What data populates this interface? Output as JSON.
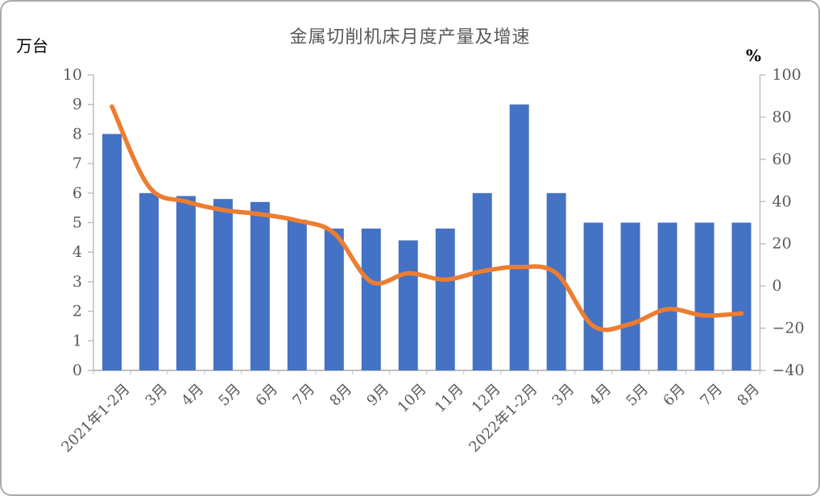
{
  "chart": {
    "title": "金属切削机床月度产量及增速",
    "left_unit": "万台",
    "right_unit": "%"
  },
  "chart_data": {
    "type": "bar",
    "title": "金属切削机床月度产量及增速",
    "left_axis_label": "万台",
    "right_axis_label": "%",
    "categories": [
      "2021年1-2月",
      "3月",
      "4月",
      "5月",
      "6月",
      "7月",
      "8月",
      "9月",
      "10月",
      "11月",
      "12月",
      "2022年1-2月",
      "3月",
      "4月",
      "5月",
      "6月",
      "7月",
      "8月"
    ],
    "series": [
      {
        "name": "月度产量",
        "type": "bar",
        "axis": "left",
        "color": "#4472C4",
        "values": [
          8.0,
          6.0,
          5.9,
          5.8,
          5.7,
          5.1,
          4.8,
          4.8,
          4.4,
          4.8,
          6.0,
          9.0,
          6.0,
          5.0,
          5.0,
          5.0,
          5.0,
          5.0
        ]
      },
      {
        "name": "增速",
        "type": "line",
        "axis": "right",
        "color": "#ED7D31",
        "values": [
          85,
          47,
          40,
          36,
          34,
          31,
          25,
          2,
          6,
          3,
          7,
          9,
          6,
          -19,
          -18,
          -11,
          -14,
          -13
        ]
      }
    ],
    "left_axis": {
      "min": 0,
      "max": 10,
      "ticks": [
        0,
        1,
        2,
        3,
        4,
        5,
        6,
        7,
        8,
        9,
        10
      ]
    },
    "right_axis": {
      "min": -40,
      "max": 100,
      "ticks": [
        -40,
        -20,
        0,
        20,
        40,
        60,
        80,
        100
      ]
    },
    "grid": false,
    "legend": "none",
    "axis_color": "#c0c0c0",
    "label_color": "#595959"
  }
}
